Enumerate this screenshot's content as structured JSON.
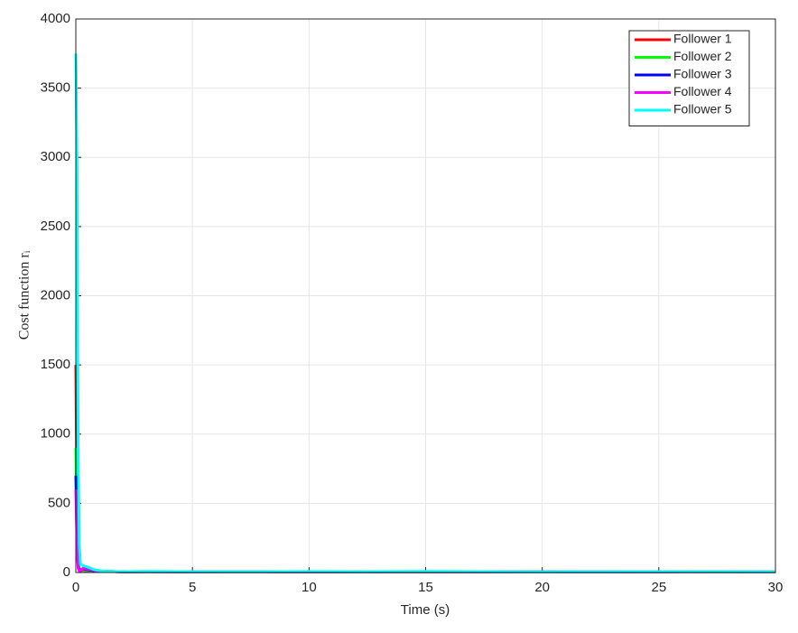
{
  "chart_data": {
    "type": "line",
    "xlabel": "Time (s)",
    "ylabel": "Cost function rᵢ",
    "x": [
      0,
      0.05,
      0.1,
      0.15,
      0.2,
      0.3,
      0.5,
      0.8,
      1.2,
      2,
      3,
      5,
      8,
      10,
      12,
      15,
      18,
      20,
      22,
      25,
      28,
      30
    ],
    "series": [
      {
        "name": "Follower 1",
        "color": "#ff0000",
        "values": [
          1500,
          400,
          60,
          30,
          20,
          15,
          12,
          10,
          8,
          5,
          6,
          5,
          5,
          5,
          6,
          5,
          5,
          5,
          5,
          5,
          5,
          4
        ]
      },
      {
        "name": "Follower 2",
        "color": "#00ff00",
        "values": [
          900,
          300,
          50,
          25,
          20,
          18,
          15,
          12,
          8,
          5,
          6,
          5,
          5,
          6,
          5,
          6,
          5,
          5,
          5,
          6,
          5,
          4
        ]
      },
      {
        "name": "Follower 3",
        "color": "#0000ff",
        "values": [
          700,
          250,
          40,
          20,
          15,
          25,
          20,
          12,
          8,
          5,
          6,
          5,
          6,
          5,
          5,
          6,
          5,
          5,
          5,
          5,
          6,
          4
        ]
      },
      {
        "name": "Follower 4",
        "color": "#ff00ff",
        "values": [
          600,
          200,
          30,
          10,
          5,
          30,
          25,
          15,
          8,
          5,
          6,
          5,
          5,
          5,
          6,
          5,
          5,
          5,
          5,
          5,
          5,
          4
        ]
      },
      {
        "name": "Follower 5",
        "color": "#00ffff",
        "values": [
          3750,
          3000,
          900,
          200,
          60,
          50,
          40,
          20,
          10,
          6,
          8,
          6,
          6,
          7,
          6,
          8,
          6,
          5,
          6,
          6,
          6,
          5
        ]
      }
    ],
    "xlim": [
      0,
      30
    ],
    "xticks": [
      0,
      5,
      10,
      15,
      20,
      25,
      30
    ],
    "ylim": [
      0,
      4000
    ],
    "yticks": [
      0,
      500,
      1000,
      1500,
      2000,
      2500,
      3000,
      3500,
      4000
    ],
    "grid": true,
    "legend": "upper right"
  }
}
